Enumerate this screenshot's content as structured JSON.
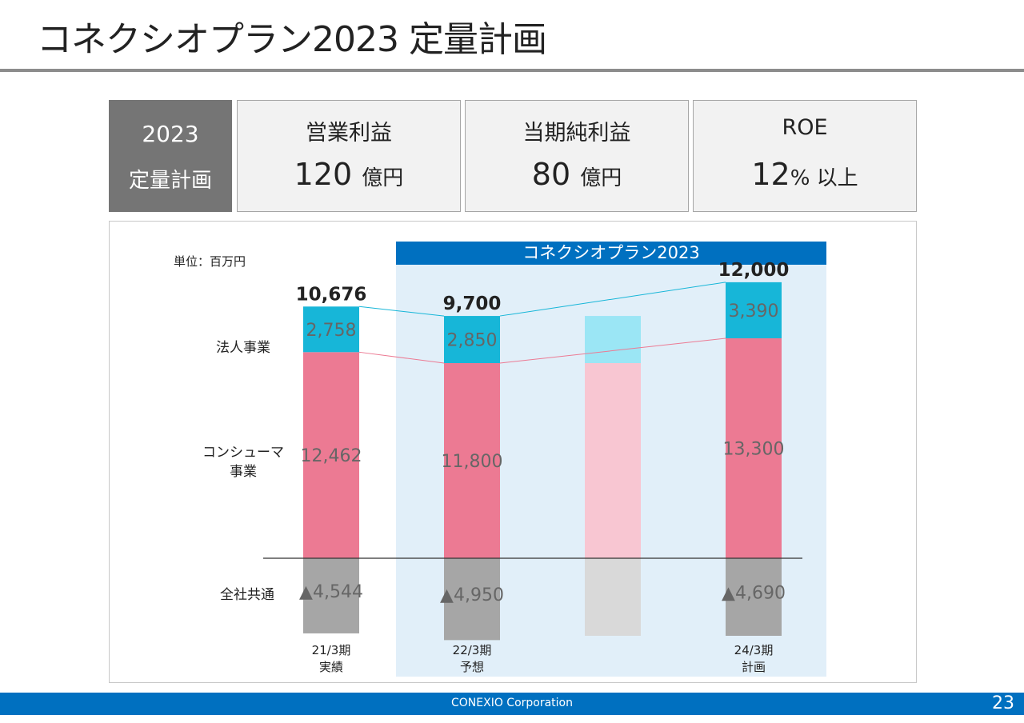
{
  "slide": {
    "title": "コネクシオプラン2023 定量計画",
    "page_number": "23",
    "footer": "CONEXIO Corporation"
  },
  "kpi": {
    "head_year": "2023",
    "head_label": "定量計画",
    "items": [
      {
        "label": "営業利益",
        "value": "120",
        "unit": "億円"
      },
      {
        "label": "当期純利益",
        "value": "80",
        "unit": "億円"
      },
      {
        "label": "ROE",
        "value": "12",
        "unit": "% 以上"
      }
    ]
  },
  "chart_data": {
    "type": "bar",
    "stacked": true,
    "unit_label": "単位：百万円",
    "plan_banner": "コネクシオプラン2023",
    "categories": [
      {
        "line1": "21/3期",
        "line2": "実績"
      },
      {
        "line1": "22/3期",
        "line2": "予想"
      },
      {
        "line1": "",
        "line2": ""
      },
      {
        "line1": "24/3期",
        "line2": "計画"
      }
    ],
    "series": [
      {
        "name": "全社共通",
        "values": [
          -4544,
          -4950,
          null,
          -4690
        ],
        "labels": [
          "▲4,544",
          "▲4,950",
          "",
          "▲4,690"
        ],
        "color": "#a6a6a6",
        "faded_color": "#d9d9d9"
      },
      {
        "name": "コンシューマ事業",
        "values": [
          12462,
          11800,
          null,
          13300
        ],
        "labels": [
          "12,462",
          "11,800",
          "",
          "13,300"
        ],
        "color": "#ec7a93",
        "faded_color": "#f8c6d2"
      },
      {
        "name": "法人事業",
        "values": [
          2758,
          2850,
          null,
          3390
        ],
        "labels": [
          "2,758",
          "2,850",
          "",
          "3,390"
        ],
        "color": "#17b6d8",
        "faded_color": "#9be6f5"
      }
    ],
    "row_labels": {
      "corporate": "法人事業",
      "consumer_line1": "コンシューマ",
      "consumer_line2": "事業",
      "common": "全社共通"
    },
    "totals": [
      "10,676",
      "9,700",
      "",
      "12,000"
    ],
    "colors": {
      "banner": "#0070c0",
      "plan_area": "#e1eff9",
      "corporate_line": "#17b6d8",
      "consumer_line": "#ec7a93"
    }
  }
}
